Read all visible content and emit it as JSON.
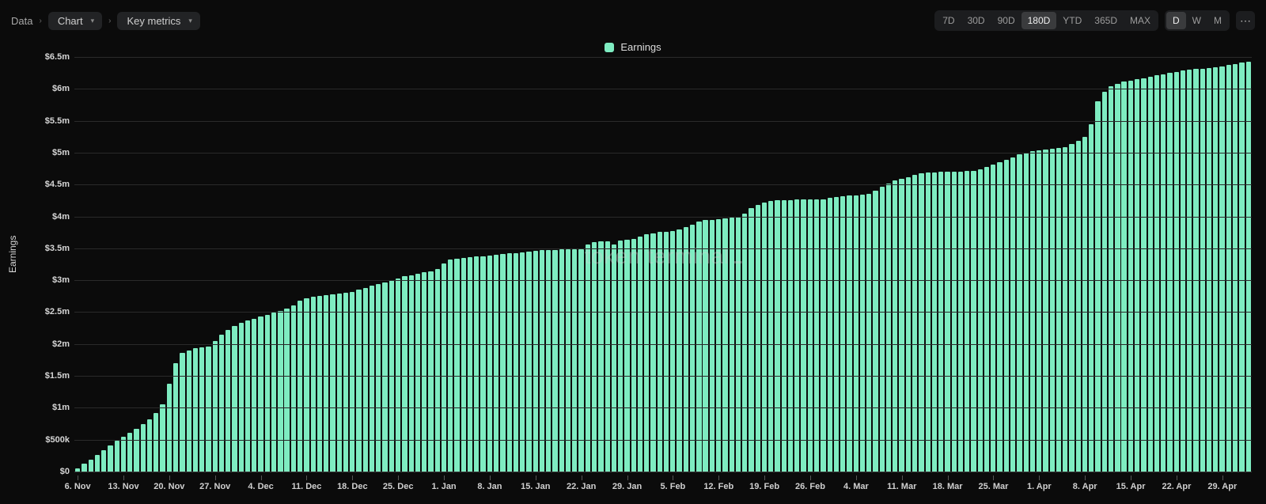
{
  "breadcrumbs": {
    "root": "Data",
    "select_chart": "Chart",
    "select_metric": "Key metrics"
  },
  "time_range": {
    "options": [
      "7D",
      "30D",
      "90D",
      "180D",
      "YTD",
      "365D",
      "MAX"
    ],
    "active": "180D"
  },
  "interval": {
    "options": [
      "D",
      "W",
      "M"
    ],
    "active": "D"
  },
  "legend_label": "Earnings",
  "y_axis_title": "Earnings",
  "watermark": "token terminal",
  "colors": {
    "background": "#0b0b0b",
    "bar": "#7eecc1",
    "grid": "#2a2a2a",
    "axis": "#3a3a3a",
    "text": "#d6d6d6",
    "text_muted": "#9c9c9c",
    "pill_bg": "#222325",
    "seg_bg": "#1c1d1f",
    "seg_active_bg": "#3a3b3d",
    "watermark": "rgba(210,210,210,0.35)"
  },
  "chart": {
    "type": "bar",
    "y_min": 0,
    "y_max": 6500000,
    "y_ticks": [
      {
        "v": 0,
        "label": "$0"
      },
      {
        "v": 500000,
        "label": "$500k"
      },
      {
        "v": 1000000,
        "label": "$1m"
      },
      {
        "v": 1500000,
        "label": "$1.5m"
      },
      {
        "v": 2000000,
        "label": "$2m"
      },
      {
        "v": 2500000,
        "label": "$2.5m"
      },
      {
        "v": 3000000,
        "label": "$3m"
      },
      {
        "v": 3500000,
        "label": "$3.5m"
      },
      {
        "v": 4000000,
        "label": "$4m"
      },
      {
        "v": 4500000,
        "label": "$4.5m"
      },
      {
        "v": 5000000,
        "label": "$5m"
      },
      {
        "v": 5500000,
        "label": "$5.5m"
      },
      {
        "v": 6000000,
        "label": "$6m"
      },
      {
        "v": 6500000,
        "label": "$6.5m"
      }
    ],
    "x_ticks": [
      {
        "i": 0,
        "label": "6. Nov"
      },
      {
        "i": 7,
        "label": "13. Nov"
      },
      {
        "i": 14,
        "label": "20. Nov"
      },
      {
        "i": 21,
        "label": "27. Nov"
      },
      {
        "i": 28,
        "label": "4. Dec"
      },
      {
        "i": 35,
        "label": "11. Dec"
      },
      {
        "i": 42,
        "label": "18. Dec"
      },
      {
        "i": 49,
        "label": "25. Dec"
      },
      {
        "i": 56,
        "label": "1. Jan"
      },
      {
        "i": 63,
        "label": "8. Jan"
      },
      {
        "i": 70,
        "label": "15. Jan"
      },
      {
        "i": 77,
        "label": "22. Jan"
      },
      {
        "i": 84,
        "label": "29. Jan"
      },
      {
        "i": 91,
        "label": "5. Feb"
      },
      {
        "i": 98,
        "label": "12. Feb"
      },
      {
        "i": 105,
        "label": "19. Feb"
      },
      {
        "i": 112,
        "label": "26. Feb"
      },
      {
        "i": 119,
        "label": "4. Mar"
      },
      {
        "i": 126,
        "label": "11. Mar"
      },
      {
        "i": 133,
        "label": "18. Mar"
      },
      {
        "i": 140,
        "label": "25. Mar"
      },
      {
        "i": 147,
        "label": "1. Apr"
      },
      {
        "i": 154,
        "label": "8. Apr"
      },
      {
        "i": 161,
        "label": "15. Apr"
      },
      {
        "i": 168,
        "label": "22. Apr"
      },
      {
        "i": 175,
        "label": "29. Apr"
      }
    ],
    "values": [
      50000,
      120000,
      190000,
      260000,
      340000,
      410000,
      480000,
      550000,
      610000,
      670000,
      740000,
      820000,
      920000,
      1050000,
      1380000,
      1700000,
      1860000,
      1900000,
      1930000,
      1950000,
      1960000,
      2050000,
      2150000,
      2220000,
      2280000,
      2330000,
      2370000,
      2400000,
      2430000,
      2460000,
      2490000,
      2520000,
      2550000,
      2600000,
      2680000,
      2720000,
      2740000,
      2760000,
      2770000,
      2780000,
      2790000,
      2800000,
      2820000,
      2850000,
      2880000,
      2910000,
      2940000,
      2970000,
      3000000,
      3030000,
      3060000,
      3080000,
      3100000,
      3120000,
      3140000,
      3170000,
      3260000,
      3320000,
      3340000,
      3350000,
      3360000,
      3370000,
      3380000,
      3390000,
      3400000,
      3410000,
      3420000,
      3430000,
      3440000,
      3450000,
      3460000,
      3470000,
      3475000,
      3478000,
      3480000,
      3482000,
      3485000,
      3490000,
      3560000,
      3600000,
      3610000,
      3615000,
      3560000,
      3620000,
      3630000,
      3650000,
      3680000,
      3720000,
      3740000,
      3760000,
      3760000,
      3770000,
      3800000,
      3830000,
      3870000,
      3920000,
      3940000,
      3950000,
      3960000,
      3970000,
      3980000,
      4000000,
      4050000,
      4130000,
      4180000,
      4220000,
      4240000,
      4250000,
      4255000,
      4260000,
      4262000,
      4264000,
      4265000,
      4266000,
      4270000,
      4290000,
      4310000,
      4320000,
      4325000,
      4330000,
      4340000,
      4360000,
      4400000,
      4470000,
      4520000,
      4560000,
      4590000,
      4620000,
      4650000,
      4680000,
      4690000,
      4695000,
      4700000,
      4702000,
      4704000,
      4706000,
      4710000,
      4720000,
      4740000,
      4770000,
      4810000,
      4850000,
      4890000,
      4930000,
      4970000,
      5000000,
      5020000,
      5035000,
      5050000,
      5060000,
      5070000,
      5090000,
      5130000,
      5180000,
      5250000,
      5450000,
      5800000,
      5950000,
      6040000,
      6080000,
      6110000,
      6130000,
      6150000,
      6170000,
      6190000,
      6210000,
      6230000,
      6250000,
      6270000,
      6290000,
      6300000,
      6310000,
      6320000,
      6330000,
      6340000,
      6350000,
      6370000,
      6390000,
      6410000,
      6420000
    ]
  }
}
